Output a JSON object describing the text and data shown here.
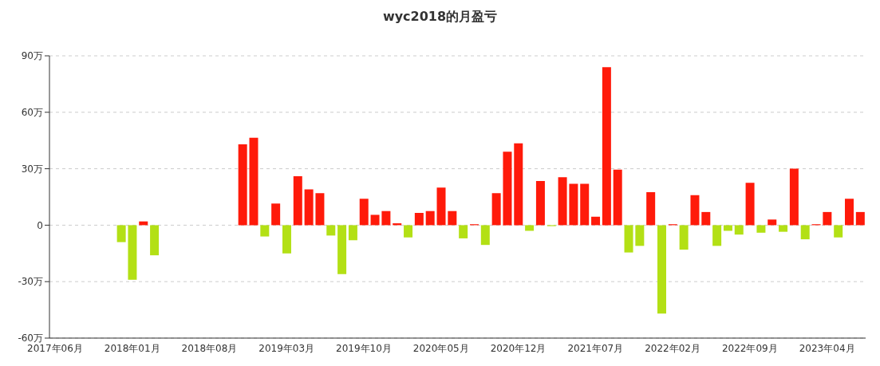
{
  "chart_data": {
    "type": "bar",
    "title": "wyc2018的月盈亏",
    "categories": [
      "2017年06月",
      null,
      null,
      null,
      null,
      null,
      null,
      "2018年01月",
      null,
      null,
      null,
      null,
      null,
      null,
      "2018年08月",
      null,
      null,
      null,
      null,
      null,
      null,
      "2019年03月",
      null,
      null,
      null,
      null,
      null,
      null,
      "2019年10月",
      null,
      null,
      null,
      null,
      null,
      null,
      "2020年05月",
      null,
      null,
      null,
      null,
      null,
      null,
      "2020年12月",
      null,
      null,
      null,
      null,
      null,
      null,
      "2021年07月",
      null,
      null,
      null,
      null,
      null,
      null,
      "2022年02月",
      null,
      null,
      null,
      null,
      null,
      null,
      "2022年09月",
      null,
      null,
      null,
      null,
      null,
      null,
      "2023年04月",
      null,
      null,
      null
    ],
    "values": [
      null,
      null,
      null,
      null,
      null,
      null,
      -9,
      -29,
      2,
      -16,
      null,
      null,
      null,
      null,
      null,
      null,
      null,
      43,
      46.5,
      -6,
      11.5,
      -15,
      26,
      19,
      17,
      -5.5,
      -26,
      -8,
      14,
      5.5,
      7.5,
      1,
      -6.5,
      6.5,
      7.5,
      20,
      7.5,
      -7,
      0.5,
      -10.5,
      17,
      39,
      43.5,
      -3,
      23.5,
      -0.5,
      25.5,
      22,
      22,
      4.5,
      84,
      29.5,
      -14.5,
      -11,
      17.5,
      -47,
      0.5,
      -13,
      16,
      7,
      -11,
      -3,
      -5,
      22.5,
      -4,
      3,
      -3.5,
      30,
      -7.5,
      0.5,
      7,
      -6.5,
      14,
      7
    ],
    "colors": [
      null,
      null,
      null,
      null,
      null,
      null,
      "#b3e015",
      "#b3e015",
      "#ff1a0a",
      "#b3e015",
      null,
      null,
      null,
      null,
      null,
      null,
      null,
      "#ff1a0a",
      "#ff1a0a",
      "#b3e015",
      "#ff1a0a",
      "#b3e015",
      "#ff1a0a",
      "#ff1a0a",
      "#ff1a0a",
      "#b3e015",
      "#b3e015",
      "#b3e015",
      "#ff1a0a",
      "#ff1a0a",
      "#ff1a0a",
      "#ff1a0a",
      "#b3e015",
      "#ff1a0a",
      "#ff1a0a",
      "#ff1a0a",
      "#ff1a0a",
      "#b3e015",
      "#ff1a0a",
      "#b3e015",
      "#ff1a0a",
      "#ff1a0a",
      "#ff1a0a",
      "#b3e015",
      "#ff1a0a",
      "#b3e015",
      "#ff1a0a",
      "#ff1a0a",
      "#ff1a0a",
      "#ff1a0a",
      "#ff1a0a",
      "#ff1a0a",
      "#b3e015",
      "#b3e015",
      "#ff1a0a",
      "#b3e015",
      "#ff1a0a",
      "#b3e015",
      "#ff1a0a",
      "#ff1a0a",
      "#b3e015",
      "#b3e015",
      "#b3e015",
      "#ff1a0a",
      "#b3e015",
      "#ff1a0a",
      "#b3e015",
      "#ff1a0a",
      "#b3e015",
      "#ff1a0a",
      "#ff1a0a",
      "#b3e015",
      "#ff1a0a",
      "#ff1a0a"
    ],
    "ylim": [
      -60,
      90
    ],
    "yticks": [
      {
        "value": -60,
        "label": "-60万"
      },
      {
        "value": -30,
        "label": "-30万"
      },
      {
        "value": 0,
        "label": "0"
      },
      {
        "value": 30,
        "label": "30万"
      },
      {
        "value": 60,
        "label": "60万"
      },
      {
        "value": 90,
        "label": "90万"
      }
    ],
    "grid": "y"
  }
}
